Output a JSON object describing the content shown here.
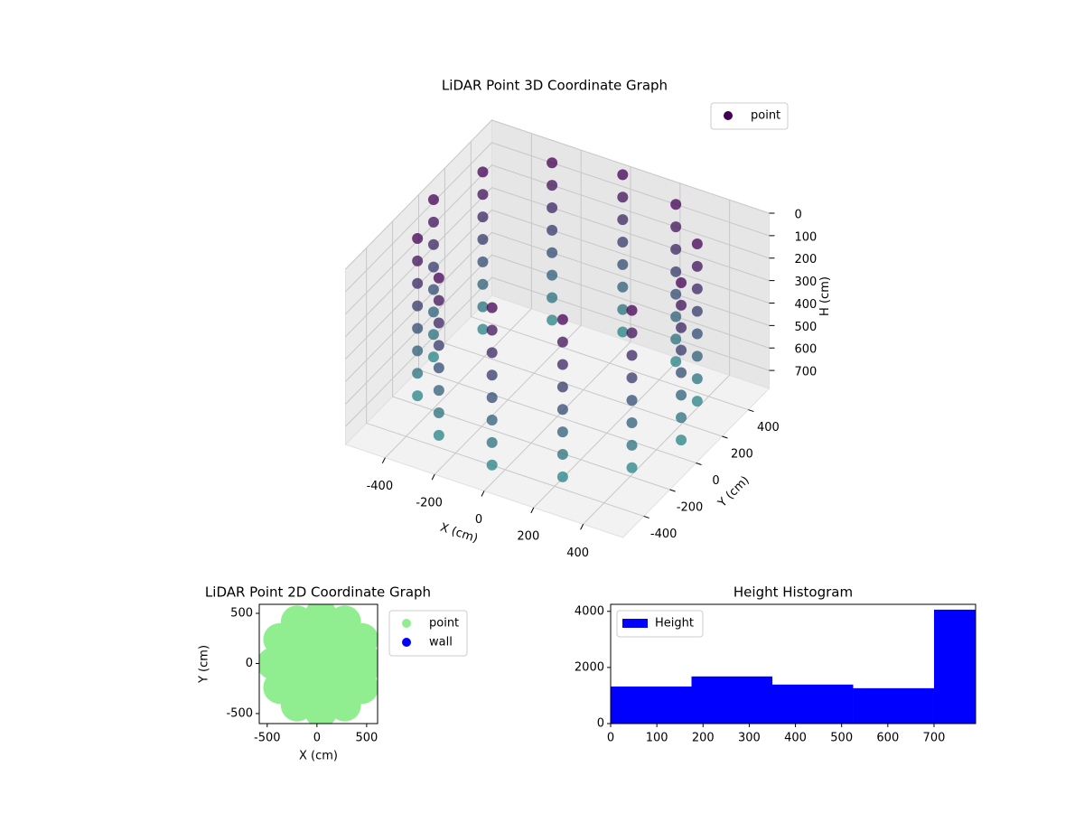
{
  "chart_data": [
    {
      "type": "scatter3d",
      "title": "LiDAR Point 3D Coordinate Graph",
      "xlabel": "X (cm)",
      "ylabel": "Y (cm)",
      "zlabel": "H (cm)",
      "series": [
        {
          "name": "point",
          "colormap": [
            "#440154",
            "#21918c"
          ],
          "x": [
            500,
            433,
            250,
            0,
            -250,
            -433,
            -500,
            -433,
            -250,
            0,
            250,
            433,
            500,
            433,
            250,
            0,
            -250,
            -433,
            -500,
            -433,
            -250,
            0,
            250,
            433,
            500,
            433,
            250,
            0,
            -250,
            -433,
            -500,
            -433,
            -250,
            0,
            250,
            433,
            500,
            433,
            250,
            0,
            -250,
            -433,
            -500,
            -433,
            -250,
            0,
            250,
            433,
            500,
            433,
            250,
            0,
            -250,
            -433,
            -500,
            -433,
            -250,
            0,
            250,
            433,
            500,
            433,
            250,
            0,
            -250,
            -433,
            -500,
            -433,
            -250,
            0,
            250,
            433,
            500,
            433,
            250,
            0,
            -250,
            -433,
            -500,
            -433,
            -250,
            0,
            250,
            433,
            500,
            433,
            250,
            0,
            -250,
            -433,
            -500,
            -433,
            -250,
            0,
            250,
            433
          ],
          "y": [
            0,
            250,
            433,
            500,
            433,
            250,
            0,
            -250,
            -433,
            -500,
            -433,
            -250,
            0,
            250,
            433,
            500,
            433,
            250,
            0,
            -250,
            -433,
            -500,
            -433,
            -250,
            0,
            250,
            433,
            500,
            433,
            250,
            0,
            -250,
            -433,
            -500,
            -433,
            -250,
            0,
            250,
            433,
            500,
            433,
            250,
            0,
            -250,
            -433,
            -500,
            -433,
            -250,
            0,
            250,
            433,
            500,
            433,
            250,
            0,
            -250,
            -433,
            -500,
            -433,
            -250,
            0,
            250,
            433,
            500,
            433,
            250,
            0,
            -250,
            -433,
            -500,
            -433,
            -250,
            0,
            250,
            433,
            500,
            433,
            250,
            0,
            -250,
            -433,
            -500,
            -433,
            -250,
            0,
            250,
            433,
            500,
            433,
            250,
            0,
            -250,
            -433,
            -500,
            -433,
            -250
          ],
          "z": [
            0,
            0,
            0,
            0,
            0,
            0,
            0,
            0,
            0,
            0,
            0,
            0,
            100,
            100,
            100,
            100,
            100,
            100,
            100,
            100,
            100,
            100,
            100,
            100,
            200,
            200,
            200,
            200,
            200,
            200,
            200,
            200,
            200,
            200,
            200,
            200,
            300,
            300,
            300,
            300,
            300,
            300,
            300,
            300,
            300,
            300,
            300,
            300,
            400,
            400,
            400,
            400,
            400,
            400,
            400,
            400,
            400,
            400,
            400,
            400,
            500,
            500,
            500,
            500,
            500,
            500,
            500,
            500,
            500,
            500,
            500,
            500,
            600,
            600,
            600,
            600,
            600,
            600,
            600,
            600,
            600,
            600,
            600,
            600,
            700,
            700,
            700,
            700,
            700,
            700,
            700,
            700,
            700,
            700,
            700,
            700
          ]
        }
      ],
      "xlim": [
        -560,
        560
      ],
      "ylim": [
        -560,
        560
      ],
      "zlim": [
        0,
        780
      ],
      "z_inverted": true,
      "xticks": [
        -400,
        -200,
        0,
        200,
        400
      ],
      "yticks": [
        -400,
        -200,
        0,
        200,
        400
      ],
      "zticks": [
        0,
        100,
        200,
        300,
        400,
        500,
        600,
        700
      ],
      "grid": true,
      "legend": "upper right"
    },
    {
      "type": "scatter",
      "title": "LiDAR Point 2D Coordinate Graph",
      "xlabel": "X (cm)",
      "ylabel": "Y (cm)",
      "series": [
        {
          "name": "point",
          "color": "#90ee90",
          "x": [
            520,
            456,
            280,
            40,
            -200,
            -376,
            -440,
            -376,
            -200,
            40,
            280,
            456,
            280,
            160,
            -80,
            -200,
            -80,
            160,
            40
          ],
          "y": [
            0,
            240,
            416,
            480,
            416,
            240,
            0,
            -240,
            -416,
            -480,
            -416,
            -240,
            0,
            208,
            208,
            0,
            -208,
            -208,
            0
          ]
        },
        {
          "name": "wall",
          "color": "#0000ff",
          "x": [],
          "y": []
        }
      ],
      "xlim": [
        -580,
        610
      ],
      "ylim": [
        -600,
        590
      ],
      "xticks": [
        -500,
        0,
        500
      ],
      "yticks": [
        -500,
        0,
        500
      ],
      "legend": "outside right"
    },
    {
      "type": "histogram",
      "title": "Height Histogram",
      "series": [
        {
          "name": "Height",
          "color": "#0000ff",
          "bins": [
            0,
            175,
            350,
            525,
            700,
            790
          ],
          "values": [
            1320,
            1680,
            1390,
            1260,
            4060
          ]
        }
      ],
      "xlim": [
        0,
        790
      ],
      "ylim": [
        0,
        4250
      ],
      "xticks": [
        0,
        100,
        200,
        300,
        400,
        500,
        600,
        700
      ],
      "yticks": [
        0,
        2000,
        4000
      ],
      "legend": "upper left"
    }
  ]
}
